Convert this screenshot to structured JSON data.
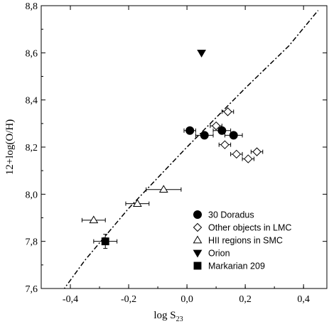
{
  "chart_data": {
    "type": "scatter",
    "xlabel": "log S",
    "xlabel_sub": "23",
    "ylabel": "12+log(O/H)",
    "xlim": [
      -0.5,
      0.48
    ],
    "ylim": [
      7.6,
      8.8
    ],
    "x_ticks": [
      -0.4,
      -0.2,
      0.0,
      0.2,
      0.4
    ],
    "x_tick_labels": [
      "-0,4",
      "-0,2",
      "0,0",
      "0,2",
      "0,4"
    ],
    "y_ticks": [
      7.6,
      7.8,
      8.0,
      8.2,
      8.4,
      8.6,
      8.8
    ],
    "y_tick_labels": [
      "7,6",
      "7,8",
      "8,0",
      "8,2",
      "8,4",
      "8,6",
      "8,8"
    ],
    "grid": false,
    "legend_position": "bottom-right",
    "series": [
      {
        "name": "30 Doradus",
        "marker": "circle-filled",
        "points": [
          {
            "x": 0.01,
            "y": 8.27,
            "xerr": 0.02
          },
          {
            "x": 0.06,
            "y": 8.25,
            "xerr": 0.03
          },
          {
            "x": 0.12,
            "y": 8.27,
            "xerr": 0.03
          },
          {
            "x": 0.16,
            "y": 8.25,
            "xerr": 0.03
          }
        ]
      },
      {
        "name": "Other objects in LMC",
        "marker": "diamond-open",
        "points": [
          {
            "x": 0.14,
            "y": 8.35,
            "xerr": 0.02
          },
          {
            "x": 0.1,
            "y": 8.29,
            "xerr": 0.02
          },
          {
            "x": 0.13,
            "y": 8.21,
            "xerr": 0.02
          },
          {
            "x": 0.17,
            "y": 8.17,
            "xerr": 0.02
          },
          {
            "x": 0.21,
            "y": 8.15,
            "xerr": 0.02
          },
          {
            "x": 0.24,
            "y": 8.18,
            "xerr": 0.02
          }
        ]
      },
      {
        "name": "HII regions in SMC",
        "marker": "triangle-up-open",
        "points": [
          {
            "x": -0.32,
            "y": 7.89,
            "xerr": 0.04
          },
          {
            "x": -0.17,
            "y": 7.96,
            "xerr": 0.04
          },
          {
            "x": -0.08,
            "y": 8.02,
            "xerr": 0.06
          }
        ]
      },
      {
        "name": "Orion",
        "marker": "triangle-down-filled",
        "points": [
          {
            "x": 0.05,
            "y": 8.6
          }
        ]
      },
      {
        "name": "Markarian 209",
        "marker": "square-filled",
        "points": [
          {
            "x": -0.28,
            "y": 7.8,
            "xerr": 0.04,
            "yerr": 0.03
          }
        ]
      }
    ],
    "fit_line": {
      "style": "dash-dot",
      "points": [
        [
          -0.45,
          7.55
        ],
        [
          -0.35,
          7.72
        ],
        [
          -0.2,
          7.94
        ],
        [
          0.0,
          8.2
        ],
        [
          0.2,
          8.45
        ],
        [
          0.35,
          8.63
        ],
        [
          0.45,
          8.78
        ]
      ]
    }
  }
}
